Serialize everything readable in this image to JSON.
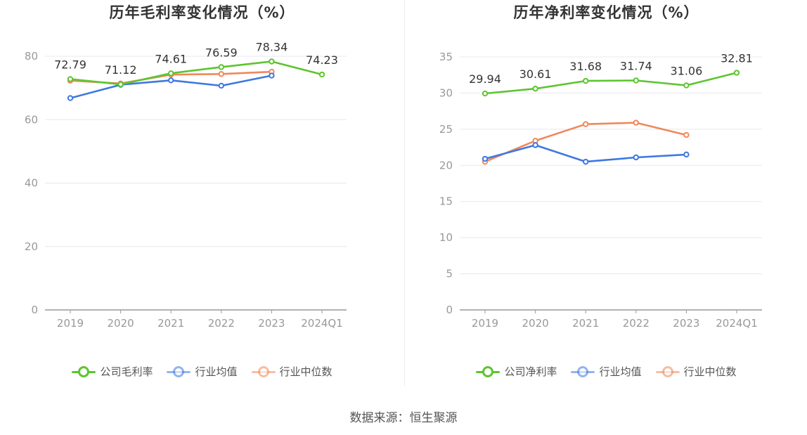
{
  "source": "数据来源：恒生聚源",
  "colors": {
    "company": "#5cc52e",
    "industry_avg": "#3f78e0",
    "industry_median": "#f0885b"
  },
  "chart_data": [
    {
      "type": "line",
      "title": "历年毛利率变化情况（%）",
      "categories": [
        "2019",
        "2020",
        "2021",
        "2022",
        "2023",
        "2024Q1"
      ],
      "ylim": [
        0,
        80
      ],
      "yticks": [
        "0",
        "20",
        "40",
        "60",
        "80"
      ],
      "grid": true,
      "legend_position": "bottom",
      "series": [
        {
          "name": "公司毛利率",
          "values": [
            72.79,
            71.12,
            74.61,
            76.59,
            78.34,
            74.23
          ],
          "labels": [
            "72.79",
            "71.12",
            "74.61",
            "76.59",
            "78.34",
            "74.23"
          ]
        },
        {
          "name": "行业均值",
          "values": [
            66.8,
            71.0,
            72.4,
            70.7,
            73.9,
            null
          ]
        },
        {
          "name": "行业中位数",
          "values": [
            72.3,
            71.4,
            74.2,
            74.4,
            75.1,
            null
          ]
        }
      ]
    },
    {
      "type": "line",
      "title": "历年净利率变化情况（%）",
      "categories": [
        "2019",
        "2020",
        "2021",
        "2022",
        "2023",
        "2024Q1"
      ],
      "ylim": [
        0,
        35
      ],
      "yticks": [
        "0",
        "5",
        "10",
        "15",
        "20",
        "25",
        "30",
        "35"
      ],
      "grid": true,
      "legend_position": "bottom",
      "series": [
        {
          "name": "公司净利率",
          "values": [
            29.94,
            30.61,
            31.68,
            31.74,
            31.06,
            32.81
          ],
          "labels": [
            "29.94",
            "30.61",
            "31.68",
            "31.74",
            "31.06",
            "32.81"
          ]
        },
        {
          "name": "行业均值",
          "values": [
            20.9,
            22.8,
            20.5,
            21.1,
            21.5,
            null
          ]
        },
        {
          "name": "行业中位数",
          "values": [
            20.5,
            23.4,
            25.7,
            25.9,
            24.2,
            null
          ]
        }
      ]
    }
  ]
}
